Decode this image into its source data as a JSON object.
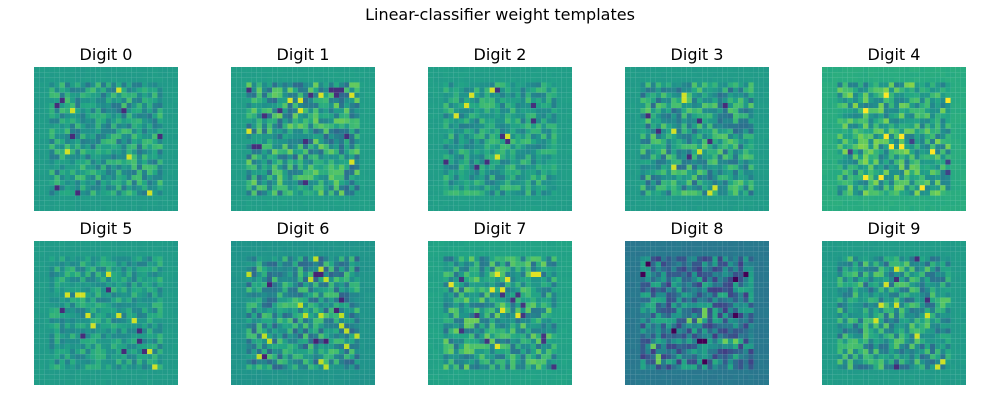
{
  "chart_data": {
    "type": "heatmap",
    "title": "Linear-classifier weight templates",
    "colormap": "viridis",
    "axes_visible": false,
    "grid_size": [
      28,
      28
    ],
    "layout": {
      "rows": 2,
      "cols": 5
    },
    "panels": [
      {
        "title": "Digit 0"
      },
      {
        "title": "Digit 1"
      },
      {
        "title": "Digit 2"
      },
      {
        "title": "Digit 3"
      },
      {
        "title": "Digit 4"
      },
      {
        "title": "Digit 5"
      },
      {
        "title": "Digit 6"
      },
      {
        "title": "Digit 7"
      },
      {
        "title": "Digit 8"
      },
      {
        "title": "Digit 9"
      }
    ]
  }
}
